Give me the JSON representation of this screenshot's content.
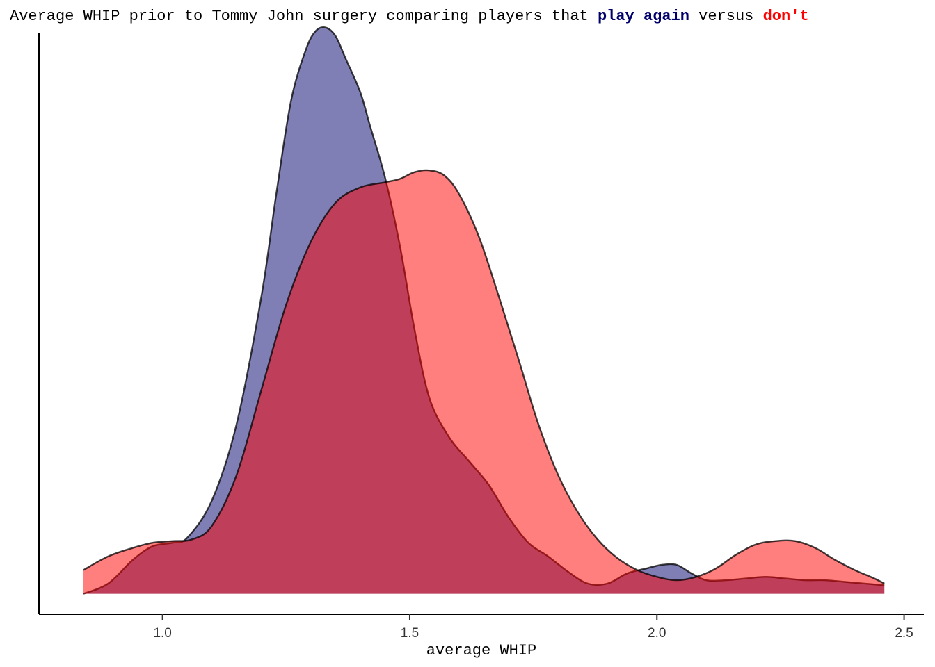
{
  "chart_data": {
    "type": "area",
    "title_parts": [
      "Average WHIP prior to Tommy John surgery comparing players that ",
      "play again",
      " versus ",
      "don't"
    ],
    "xlabel": "average WHIP",
    "ylabel": "",
    "xlim": [
      0.75,
      2.54
    ],
    "ylim": [
      -0.12,
      3.3
    ],
    "xticks": [
      1.0,
      1.5,
      2.0,
      2.5
    ],
    "xtick_labels": [
      "1.0",
      "1.5",
      "2.0",
      "2.5"
    ],
    "grid": false,
    "series": [
      {
        "name": "play again",
        "color": "#00006b",
        "fill_color": "#00006b",
        "fill_opacity": 0.5,
        "stroke_color": "#000000",
        "x": [
          0.84,
          0.89,
          0.94,
          0.98,
          1.02,
          1.05,
          1.1,
          1.15,
          1.2,
          1.23,
          1.26,
          1.29,
          1.31,
          1.33,
          1.35,
          1.37,
          1.4,
          1.42,
          1.45,
          1.48,
          1.51,
          1.54,
          1.58,
          1.62,
          1.66,
          1.7,
          1.74,
          1.78,
          1.82,
          1.86,
          1.9,
          1.94,
          1.98,
          2.01,
          2.04,
          2.07,
          2.1,
          2.14,
          2.18,
          2.22,
          2.26,
          2.3,
          2.34,
          2.38,
          2.42,
          2.46
        ],
        "y": [
          0.0,
          0.06,
          0.2,
          0.28,
          0.3,
          0.33,
          0.55,
          1.0,
          1.75,
          2.35,
          2.9,
          3.2,
          3.31,
          3.33,
          3.28,
          3.15,
          2.95,
          2.75,
          2.45,
          2.05,
          1.55,
          1.15,
          0.92,
          0.78,
          0.64,
          0.45,
          0.3,
          0.22,
          0.13,
          0.06,
          0.06,
          0.12,
          0.15,
          0.17,
          0.17,
          0.12,
          0.08,
          0.08,
          0.09,
          0.1,
          0.09,
          0.08,
          0.08,
          0.07,
          0.06,
          0.05
        ]
      },
      {
        "name": "don't",
        "color": "#ff0000",
        "fill_color": "#ff0000",
        "fill_opacity": 0.5,
        "stroke_color": "#000000",
        "x": [
          0.84,
          0.89,
          0.94,
          0.98,
          1.02,
          1.06,
          1.1,
          1.15,
          1.2,
          1.25,
          1.3,
          1.35,
          1.4,
          1.45,
          1.48,
          1.51,
          1.54,
          1.57,
          1.6,
          1.64,
          1.68,
          1.72,
          1.76,
          1.8,
          1.84,
          1.88,
          1.92,
          1.96,
          2.0,
          2.04,
          2.08,
          2.12,
          2.16,
          2.2,
          2.24,
          2.28,
          2.32,
          2.36,
          2.4,
          2.44,
          2.46
        ],
        "y": [
          0.14,
          0.22,
          0.27,
          0.3,
          0.31,
          0.32,
          0.4,
          0.7,
          1.2,
          1.7,
          2.07,
          2.3,
          2.39,
          2.42,
          2.44,
          2.48,
          2.49,
          2.46,
          2.35,
          2.1,
          1.75,
          1.38,
          1.0,
          0.7,
          0.48,
          0.32,
          0.21,
          0.14,
          0.1,
          0.08,
          0.1,
          0.15,
          0.23,
          0.29,
          0.31,
          0.31,
          0.27,
          0.2,
          0.14,
          0.09,
          0.06
        ]
      }
    ]
  }
}
